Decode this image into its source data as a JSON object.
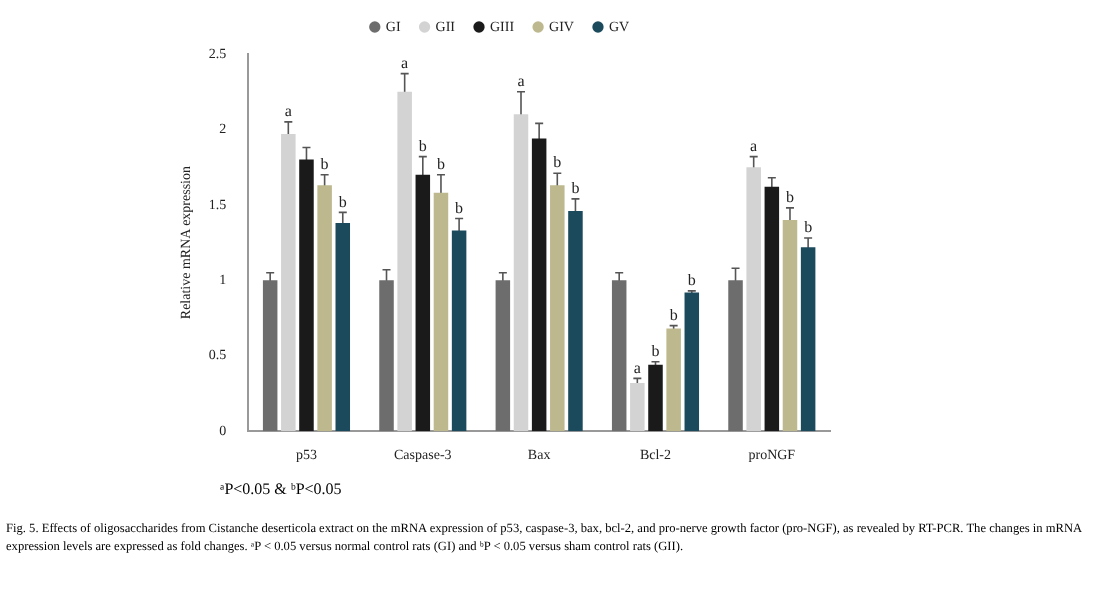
{
  "chart_data": {
    "type": "bar",
    "ylabel": "Relative mRNA expression",
    "categories": [
      "p53",
      "Caspase-3",
      "Bax",
      "Bcl-2",
      "proNGF"
    ],
    "series": [
      {
        "name": "GI",
        "color": "#6d6d6d",
        "values": [
          1.0,
          1.0,
          1.0,
          1.0,
          1.0
        ],
        "errors": [
          0.05,
          0.07,
          0.05,
          0.05,
          0.08
        ]
      },
      {
        "name": "GII",
        "color": "#d3d3d3",
        "values": [
          1.97,
          2.25,
          2.1,
          0.32,
          1.75
        ],
        "errors": [
          0.08,
          0.12,
          0.15,
          0.03,
          0.07
        ],
        "value_labels": [
          "a",
          "a",
          "a",
          "a",
          "a"
        ]
      },
      {
        "name": "GIII",
        "color": "#1a1a1a",
        "values": [
          1.8,
          1.7,
          1.94,
          0.44,
          1.62
        ],
        "errors": [
          0.08,
          0.12,
          0.1,
          0.02,
          0.06
        ],
        "value_labels": [
          null,
          "b",
          null,
          "b",
          null
        ]
      },
      {
        "name": "GIV",
        "color": "#bdb88e",
        "values": [
          1.63,
          1.58,
          1.63,
          0.68,
          1.4
        ],
        "errors": [
          0.07,
          0.12,
          0.08,
          0.02,
          0.08
        ],
        "value_labels": [
          "b",
          "b",
          "b",
          "b",
          "b"
        ]
      },
      {
        "name": "GV",
        "color": "#1b4a5c",
        "values": [
          1.38,
          1.33,
          1.46,
          0.92,
          1.22
        ],
        "errors": [
          0.07,
          0.08,
          0.08,
          0.01,
          0.06
        ],
        "value_labels": [
          "b",
          "b",
          "b",
          "b",
          "b"
        ]
      }
    ],
    "ylim": [
      0,
      2.5
    ],
    "yticks": [
      0,
      0.5,
      1,
      1.5,
      2,
      2.5
    ],
    "grid": false,
    "legend": "top",
    "annotations": [
      "ᵃP<0.05 & ᵇP<0.05",
      "Fig. 5. Effects of oligosaccharides from Cistanche deserticola extract on the mRNA expression of p53, caspase-3, bax, bcl-2, and pro-nerve growth factor (pro-NGF), as revealed by RT-PCR. The changes in mRNA expression levels are expressed as fold changes. ᵃP < 0.05 versus normal control rats (GI) and ᵇP < 0.05 versus sham control rats (GII)."
    ]
  }
}
